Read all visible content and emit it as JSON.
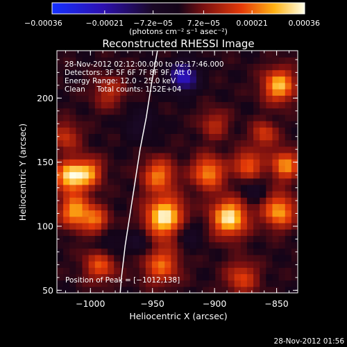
{
  "chart_data": {
    "type": "heatmap",
    "title": "Reconstructed RHESSI Image",
    "xlabel": "Heliocentric X (arcsec)",
    "ylabel": "Heliocentric Y (arcsec)",
    "xlim": [
      -1027,
      -833
    ],
    "ylim": [
      48,
      237
    ],
    "xticks": [
      -1000,
      -950,
      -900,
      -850
    ],
    "yticks": [
      50,
      100,
      150,
      200
    ],
    "xtick_labels": [
      "−1000",
      "−950",
      "−900",
      "−850"
    ],
    "ytick_labels": [
      "50",
      "100",
      "150",
      "200"
    ],
    "colorbar": {
      "range": [
        -0.00036,
        0.00036
      ],
      "ticks": [
        -0.00036,
        -0.00021,
        -7.2e-05,
        7.2e-05,
        0.00021,
        0.00036
      ],
      "tick_labels": [
        "−0.00036",
        "−0.00021",
        "−7.2e−05",
        "7.2e−05",
        "0.00021",
        "0.00036"
      ],
      "unit_label": "(photons cm⁻² s⁻¹ asec⁻²)"
    },
    "annotations": [
      "28-Nov-2012 02:12:00.000 to 02:17:46.000",
      "Detectors: 3F 5F 6F 7F 8F 9F, Att 0",
      "Energy Range: 12.0 - 25.0 keV",
      "Clean     Total counts: 1.52E+04"
    ],
    "peak_label": "Position of Peak = [−1012,138]",
    "limb": [
      [
        -946,
        237
      ],
      [
        -951,
        210
      ],
      [
        -955,
        185
      ],
      [
        -960,
        160
      ],
      [
        -964,
        135
      ],
      [
        -968,
        110
      ],
      [
        -972,
        85
      ],
      [
        -975,
        60
      ],
      [
        -976,
        48
      ]
    ],
    "sources": [
      {
        "x": -1017,
        "y": 139,
        "amplitude": 0.0003,
        "sigma": 8
      },
      {
        "x": -1002,
        "y": 142,
        "amplitude": 0.00024,
        "sigma": 8
      },
      {
        "x": -1012,
        "y": 112,
        "amplitude": 0.00026,
        "sigma": 9
      },
      {
        "x": -995,
        "y": 105,
        "amplitude": 0.00018,
        "sigma": 7
      },
      {
        "x": -940,
        "y": 107,
        "amplitude": 0.00034,
        "sigma": 11
      },
      {
        "x": -945,
        "y": 140,
        "amplitude": 0.00022,
        "sigma": 9
      },
      {
        "x": -888,
        "y": 107,
        "amplitude": 0.00033,
        "sigma": 10
      },
      {
        "x": -905,
        "y": 142,
        "amplitude": 0.00024,
        "sigma": 9
      },
      {
        "x": -873,
        "y": 148,
        "amplitude": 0.0002,
        "sigma": 8
      },
      {
        "x": -848,
        "y": 112,
        "amplitude": 0.00026,
        "sigma": 9
      },
      {
        "x": -843,
        "y": 148,
        "amplitude": 0.00024,
        "sigma": 8
      },
      {
        "x": -848,
        "y": 210,
        "amplitude": 0.00028,
        "sigma": 9
      },
      {
        "x": -860,
        "y": 172,
        "amplitude": 0.00016,
        "sigma": 7
      },
      {
        "x": -943,
        "y": 70,
        "amplitude": 0.0002,
        "sigma": 10
      },
      {
        "x": -992,
        "y": 70,
        "amplitude": 0.00018,
        "sigma": 9
      },
      {
        "x": -878,
        "y": 60,
        "amplitude": 0.00016,
        "sigma": 9
      },
      {
        "x": -1020,
        "y": 170,
        "amplitude": 0.00014,
        "sigma": 8
      },
      {
        "x": -985,
        "y": 205,
        "amplitude": 0.00012,
        "sigma": 9
      },
      {
        "x": -900,
        "y": 180,
        "amplitude": 0.00012,
        "sigma": 8
      },
      {
        "x": -925,
        "y": 217,
        "amplitude": -0.00026,
        "sigma": 8
      },
      {
        "x": -922,
        "y": 95,
        "amplitude": -0.0001,
        "sigma": 8
      },
      {
        "x": -960,
        "y": 88,
        "amplitude": -0.0001,
        "sigma": 7
      },
      {
        "x": -985,
        "y": 85,
        "amplitude": -8e-05,
        "sigma": 7
      },
      {
        "x": -870,
        "y": 128,
        "amplitude": -8e-05,
        "sigma": 7
      },
      {
        "x": -960,
        "y": 180,
        "amplitude": -8e-05,
        "sigma": 9
      }
    ]
  },
  "footer": {
    "timestamp": "28-Nov-2012 01:56"
  }
}
